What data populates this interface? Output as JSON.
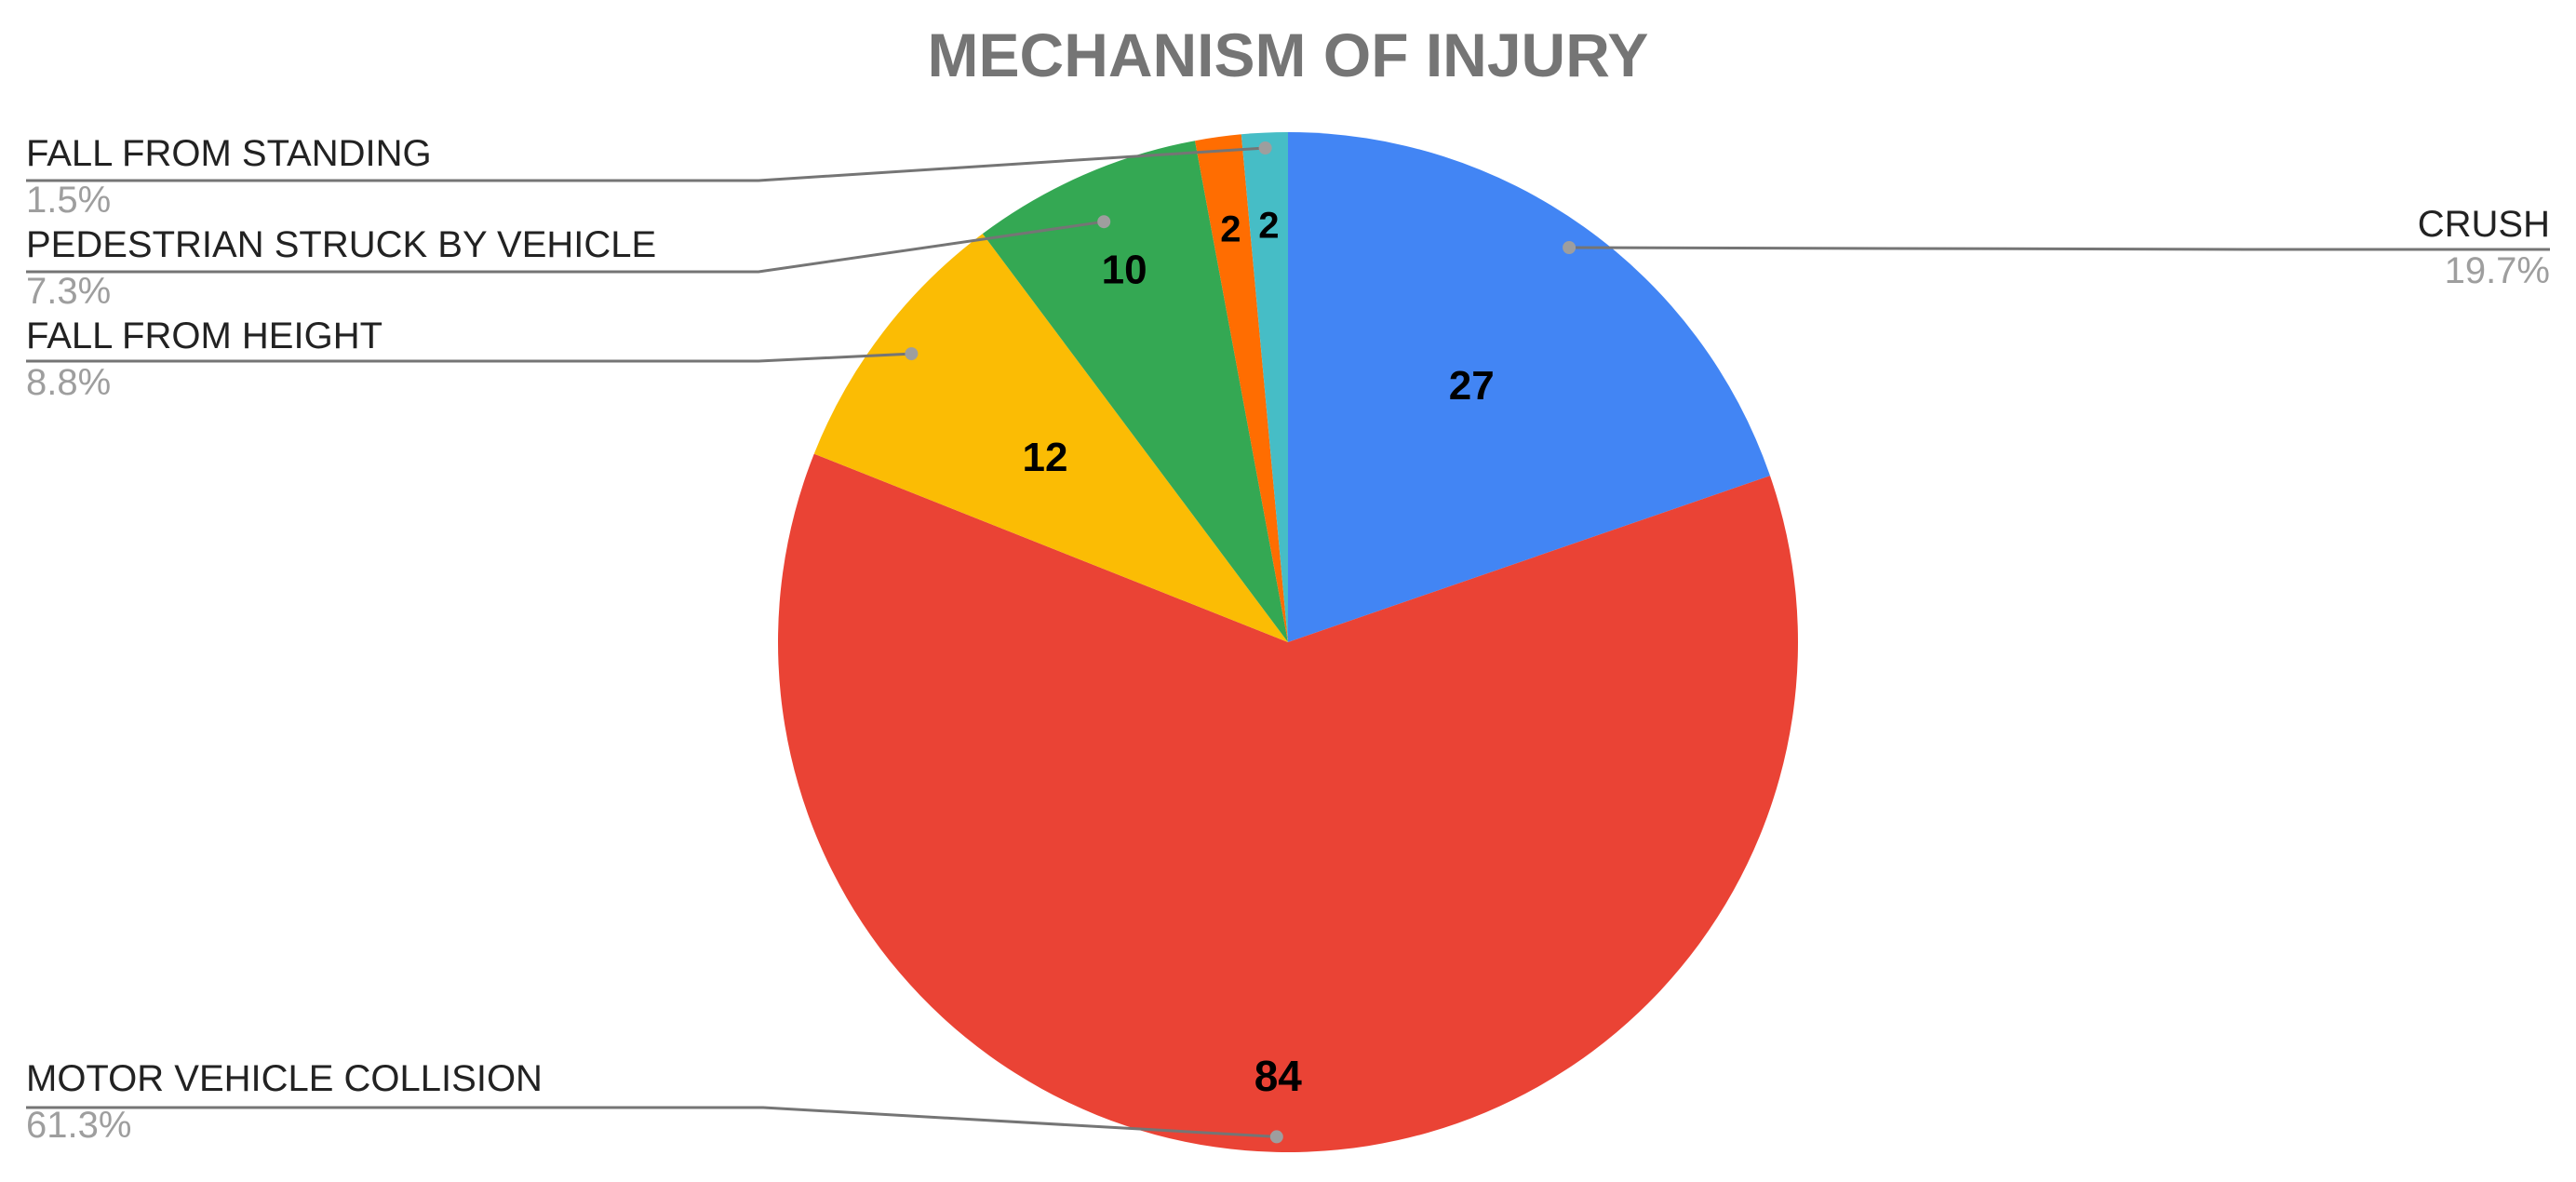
{
  "chart_data": {
    "type": "pie",
    "title": "MECHANISM OF INJURY",
    "slices": [
      {
        "label": "CRUSH",
        "value": 27,
        "percent": "19.7%",
        "color": "#4285f4"
      },
      {
        "label": "MOTOR VEHICLE COLLISION",
        "value": 84,
        "percent": "61.3%",
        "color": "#ea4335"
      },
      {
        "label": "FALL FROM HEIGHT",
        "value": 12,
        "percent": "8.8%",
        "color": "#fbbc04"
      },
      {
        "label": "PEDESTRIAN STRUCK BY VEHICLE",
        "value": 10,
        "percent": "7.3%",
        "color": "#34a853"
      },
      {
        "label": "",
        "value": 2,
        "percent": "",
        "color": "#ff6d01"
      },
      {
        "label": "FALL FROM STANDING",
        "value": 2,
        "percent": "1.5%",
        "color": "#46bdc6"
      }
    ]
  }
}
